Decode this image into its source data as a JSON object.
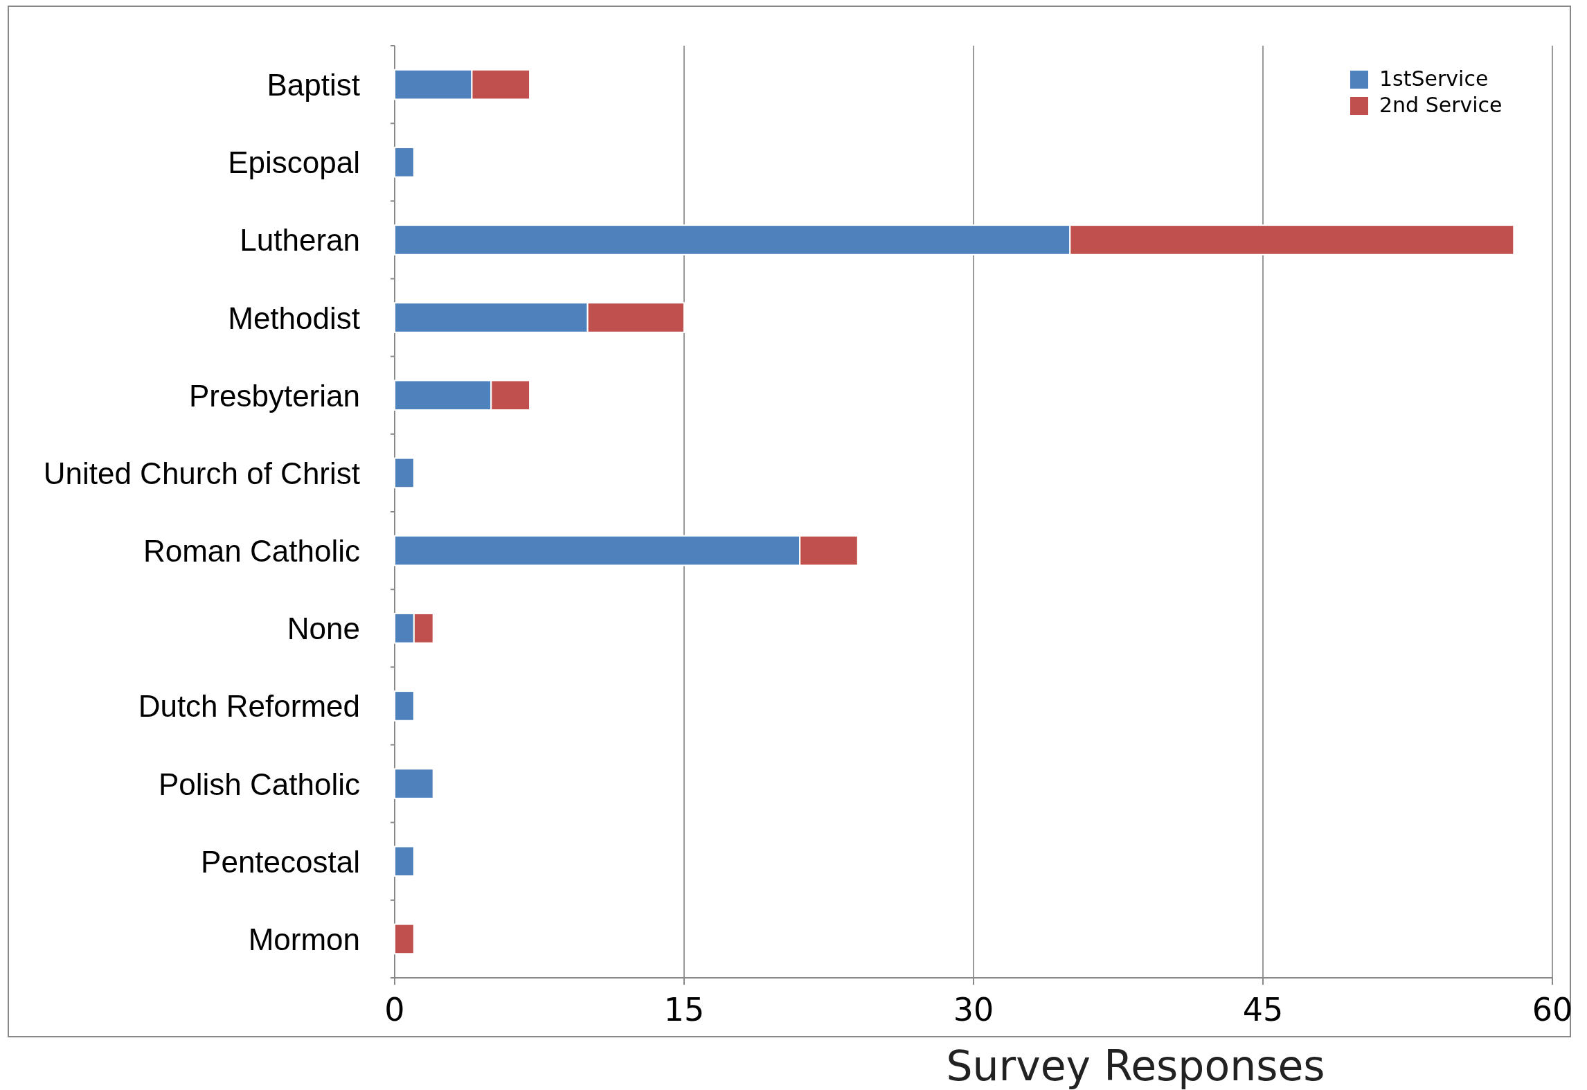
{
  "chart_data": {
    "type": "bar",
    "orientation": "horizontal",
    "stacked": true,
    "xlabel": "Survey Responses",
    "categories": [
      "Baptist",
      "Episcopal",
      "Lutheran",
      "Methodist",
      "Presbyterian",
      "United Church of Christ",
      "Roman Catholic",
      "None",
      "Dutch Reformed",
      "Polish Catholic",
      "Pentecostal",
      "Mormon"
    ],
    "series": [
      {
        "name": "1stService",
        "color": "#4f81bd",
        "values": [
          4,
          1,
          35,
          10,
          5,
          1,
          21,
          1,
          1,
          2,
          1,
          0
        ]
      },
      {
        "name": "2nd Service",
        "color": "#c0504d",
        "values": [
          3,
          0,
          23,
          5,
          2,
          0,
          3,
          1,
          0,
          0,
          0,
          1
        ]
      }
    ],
    "xlim": [
      0,
      60
    ],
    "xticks": [
      0,
      15,
      30,
      45,
      60
    ],
    "grid": "x",
    "legend": "top right"
  }
}
